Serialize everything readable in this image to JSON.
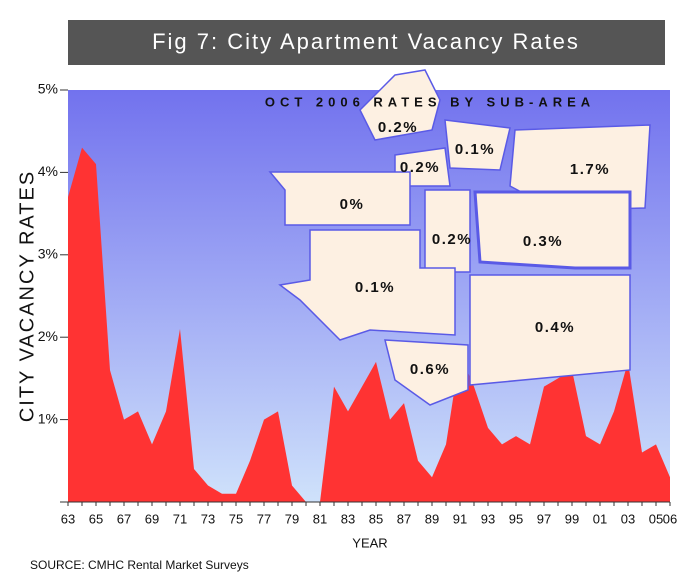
{
  "chart_data": {
    "type": "area",
    "title": "Fig 7: City Apartment Vacancy Rates",
    "y_label": "CITY VACANCY RATES",
    "x_label": "YEAR",
    "source": "SOURCE: CMHC Rental Market Surveys",
    "categories": [
      "63",
      null,
      "65",
      null,
      "67",
      null,
      "69",
      null,
      "71",
      null,
      "73",
      null,
      "75",
      null,
      "77",
      null,
      "79",
      null,
      "81",
      null,
      "83",
      null,
      "85",
      null,
      "87",
      null,
      "89",
      null,
      "91",
      null,
      "93",
      null,
      "95",
      null,
      "97",
      null,
      "99",
      null,
      "01",
      null,
      "03",
      null,
      "05",
      "06"
    ],
    "values": [
      3.7,
      4.3,
      4.1,
      1.6,
      1.0,
      1.1,
      0.7,
      1.1,
      2.1,
      0.4,
      0.2,
      0.1,
      0.1,
      0.5,
      1.0,
      1.1,
      0.2,
      0.0,
      0.0,
      1.4,
      1.1,
      1.4,
      1.7,
      1.0,
      1.2,
      0.5,
      0.3,
      0.7,
      1.8,
      1.4,
      0.9,
      0.7,
      0.8,
      0.7,
      1.4,
      1.5,
      1.6,
      0.8,
      0.7,
      1.1,
      1.7,
      0.6,
      0.7,
      0.3
    ],
    "color": "#ff3333",
    "ylim": [
      0,
      5
    ],
    "yticks": [
      0,
      {
        "value": 1,
        "label": "1%"
      },
      {
        "value": 2,
        "label": "2%"
      },
      {
        "value": 3,
        "label": "3%"
      },
      {
        "value": 4,
        "label": "4%"
      },
      {
        "value": 5,
        "label": "5%"
      }
    ],
    "map": {
      "title": "OCT 2006 RATES BY SUB-AREA",
      "labels": [
        "0.2%",
        "0.1%",
        "0.2%",
        "1.7%",
        "0%",
        "0.2%",
        "0.3%",
        "0.1%",
        "0.4%",
        "0.6%"
      ]
    }
  }
}
